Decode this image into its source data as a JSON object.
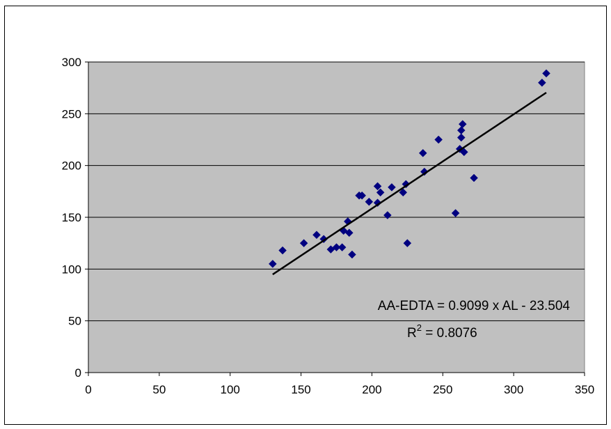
{
  "chart_data": {
    "type": "scatter",
    "title": "",
    "xlabel": "",
    "ylabel": "",
    "xlim": [
      0,
      350
    ],
    "ylim": [
      0,
      300
    ],
    "x_ticks": [
      "0",
      "50",
      "100",
      "150",
      "200",
      "250",
      "300",
      "350"
    ],
    "y_ticks": [
      "0",
      "50",
      "100",
      "150",
      "200",
      "250",
      "300"
    ],
    "grid": "horizontal major gridlines",
    "legend": "none",
    "plot_background": "#c0c0c0",
    "marker_color": "#000080",
    "marker_shape": "diamond",
    "trendline_color": "#000000",
    "points": [
      [
        130,
        105
      ],
      [
        137,
        118
      ],
      [
        152,
        125
      ],
      [
        161,
        133
      ],
      [
        166,
        129
      ],
      [
        171,
        119
      ],
      [
        175,
        121
      ],
      [
        179,
        121
      ],
      [
        180,
        137
      ],
      [
        183,
        146
      ],
      [
        184,
        135
      ],
      [
        186,
        114
      ],
      [
        191,
        171
      ],
      [
        193,
        171
      ],
      [
        198,
        165
      ],
      [
        204,
        180
      ],
      [
        204,
        164
      ],
      [
        206,
        174
      ],
      [
        211,
        152
      ],
      [
        214,
        179
      ],
      [
        222,
        174
      ],
      [
        224,
        182
      ],
      [
        225,
        125
      ],
      [
        236,
        212
      ],
      [
        237,
        194
      ],
      [
        247,
        225
      ],
      [
        259,
        154
      ],
      [
        262,
        216
      ],
      [
        263,
        234
      ],
      [
        263,
        227
      ],
      [
        264,
        240
      ],
      [
        265,
        213
      ],
      [
        272,
        188
      ],
      [
        320,
        280
      ],
      [
        323,
        289
      ]
    ],
    "trendline": {
      "slope": 0.9099,
      "intercept": -23.504,
      "x_range": [
        130,
        323
      ]
    },
    "annotations": {
      "equation": "AA-EDTA = 0.9099 x AL - 23.504",
      "r2_prefix": "R",
      "r2_superscript": "2",
      "r2_value": " = 0.8076"
    }
  }
}
